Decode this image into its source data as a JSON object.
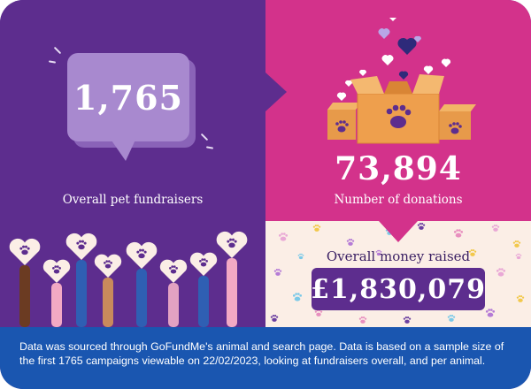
{
  "stats": {
    "fundraisers_value": "1,765",
    "fundraisers_label": "Overall pet fundraisers",
    "donations_value": "73,894",
    "donations_label": "Number of donations",
    "money_label": "Overall money raised",
    "money_value": "£1,830,079"
  },
  "footer": {
    "note": "Data was sourced through GoFundMe's animal and search page. Data is based on a sample size of the first 1765 campaigns viewable on 22/02/2023, looking at fundraisers overall, and per animal."
  },
  "colors": {
    "purple": "#5d2d8e",
    "pink": "#d3328b",
    "cream": "#fbeee6",
    "blue": "#1a56b0",
    "bubble": "#a889cf",
    "box_orange": "#e79a4a"
  },
  "icons": [
    "speech-bubble-icon",
    "boxes-icon",
    "paw-icon",
    "heart-icon",
    "raised-hands-icon"
  ]
}
